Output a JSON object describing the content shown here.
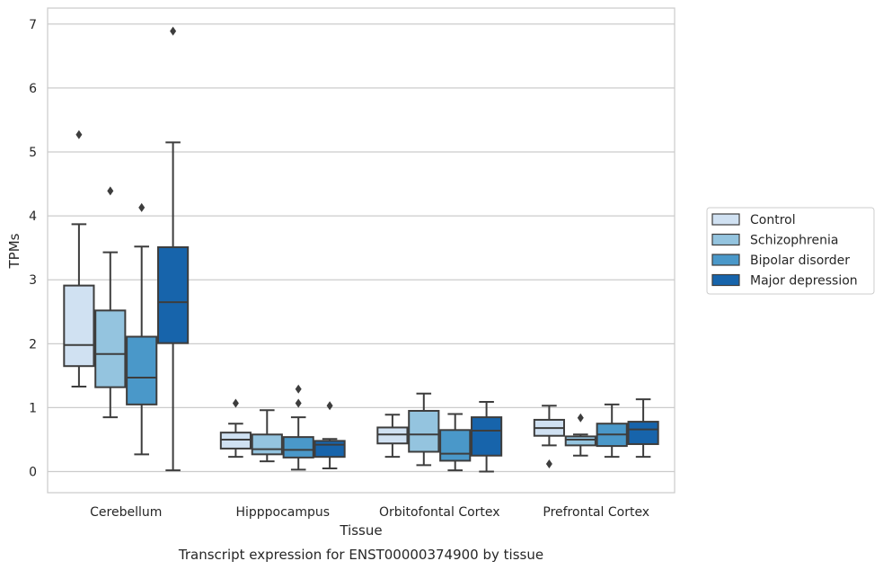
{
  "chart_data": {
    "type": "box",
    "title": "",
    "xlabel": "Tissue",
    "ylabel": "TPMs",
    "caption": "Transcript expression for ENST00000374900 by tissue",
    "ylim": [
      -0.33,
      7.25
    ],
    "yticks": [
      "0",
      "1",
      "2",
      "3",
      "4",
      "5",
      "6",
      "7"
    ],
    "grid": "horizontal",
    "legend_position": "right",
    "categories": [
      "Cerebellum",
      "Hipppocampus",
      "Orbitofontal Cortex",
      "Prefrontal Cortex"
    ],
    "series": [
      {
        "name": "Control",
        "color": "#d0e1f2",
        "boxes": [
          {
            "whisker_low": 1.33,
            "q1": 1.65,
            "median": 1.98,
            "q3": 2.91,
            "whisker_high": 3.87,
            "outliers": [
              5.27
            ]
          },
          {
            "whisker_low": 0.23,
            "q1": 0.36,
            "median": 0.5,
            "q3": 0.61,
            "whisker_high": 0.75,
            "outliers": [
              1.07
            ]
          },
          {
            "whisker_low": 0.23,
            "q1": 0.44,
            "median": 0.58,
            "q3": 0.69,
            "whisker_high": 0.89,
            "outliers": []
          },
          {
            "whisker_low": 0.41,
            "q1": 0.56,
            "median": 0.68,
            "q3": 0.81,
            "whisker_high": 1.03,
            "outliers": [
              0.12
            ]
          }
        ]
      },
      {
        "name": "Schizophrenia",
        "color": "#94c4df",
        "boxes": [
          {
            "whisker_low": 0.85,
            "q1": 1.32,
            "median": 1.84,
            "q3": 2.52,
            "whisker_high": 3.43,
            "outliers": [
              4.39
            ]
          },
          {
            "whisker_low": 0.16,
            "q1": 0.27,
            "median": 0.35,
            "q3": 0.58,
            "whisker_high": 0.96,
            "outliers": []
          },
          {
            "whisker_low": 0.1,
            "q1": 0.31,
            "median": 0.58,
            "q3": 0.95,
            "whisker_high": 1.22,
            "outliers": []
          },
          {
            "whisker_low": 0.25,
            "q1": 0.41,
            "median": 0.5,
            "q3": 0.55,
            "whisker_high": 0.58,
            "outliers": [
              0.84
            ]
          }
        ]
      },
      {
        "name": "Bipolar disorder",
        "color": "#4a98c9",
        "boxes": [
          {
            "whisker_low": 0.27,
            "q1": 1.05,
            "median": 1.47,
            "q3": 2.11,
            "whisker_high": 3.52,
            "outliers": [
              4.13
            ]
          },
          {
            "whisker_low": 0.03,
            "q1": 0.22,
            "median": 0.34,
            "q3": 0.54,
            "whisker_high": 0.85,
            "outliers": [
              1.07,
              1.29
            ]
          },
          {
            "whisker_low": 0.02,
            "q1": 0.17,
            "median": 0.28,
            "q3": 0.65,
            "whisker_high": 0.9,
            "outliers": []
          },
          {
            "whisker_low": 0.23,
            "q1": 0.4,
            "median": 0.58,
            "q3": 0.75,
            "whisker_high": 1.05,
            "outliers": []
          }
        ]
      },
      {
        "name": "Major depression",
        "color": "#1764ab",
        "boxes": [
          {
            "whisker_low": 0.02,
            "q1": 2.01,
            "median": 2.65,
            "q3": 3.51,
            "whisker_high": 5.15,
            "outliers": [
              6.89
            ]
          },
          {
            "whisker_low": 0.05,
            "q1": 0.23,
            "median": 0.42,
            "q3": 0.48,
            "whisker_high": 0.51,
            "outliers": [
              1.03
            ]
          },
          {
            "whisker_low": 0.0,
            "q1": 0.25,
            "median": 0.64,
            "q3": 0.85,
            "whisker_high": 1.09,
            "outliers": []
          },
          {
            "whisker_low": 0.23,
            "q1": 0.43,
            "median": 0.66,
            "q3": 0.78,
            "whisker_high": 1.13,
            "outliers": []
          }
        ]
      }
    ]
  }
}
